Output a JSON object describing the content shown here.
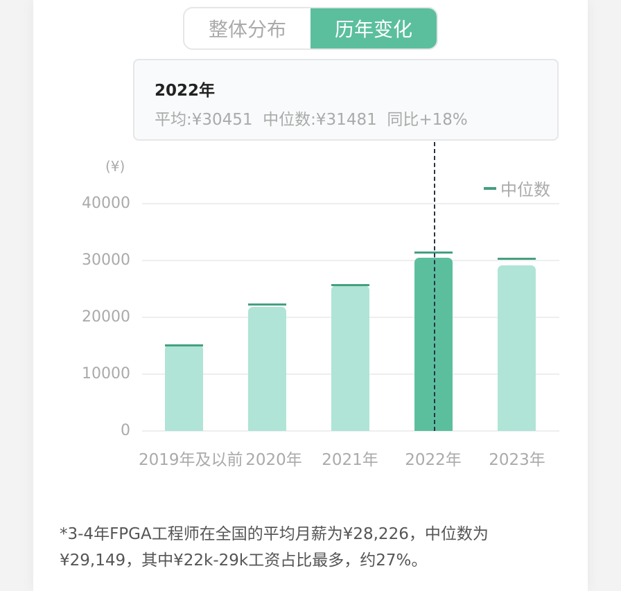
{
  "tabs": [
    {
      "label": "整体分布",
      "active": false
    },
    {
      "label": "历年变化",
      "active": true
    }
  ],
  "tooltip": {
    "title": "2022年",
    "body": "平均:¥30451  中位数:¥31481  同比+18%"
  },
  "chart_data": {
    "type": "bar",
    "title": "",
    "xlabel": "",
    "ylabel": "(¥)",
    "ylim": [
      0,
      40000
    ],
    "yticks": [
      0,
      10000,
      20000,
      30000,
      40000
    ],
    "grid": true,
    "legend_position": "top-right",
    "categories": [
      "2019年及以前",
      "2020年",
      "2021年",
      "2022年",
      "2023年"
    ],
    "series": [
      {
        "name": "平均",
        "type": "bar",
        "values": [
          15200,
          21800,
          25600,
          30451,
          29100
        ]
      },
      {
        "name": "中位数",
        "type": "marker",
        "values": [
          15100,
          22300,
          25700,
          31481,
          30400
        ]
      }
    ],
    "highlighted_index": 3,
    "colors": {
      "bar": "#afe4d6",
      "bar_active": "#5bbf9e",
      "median": "#44a07f"
    }
  },
  "chart": {
    "unit": "(¥)",
    "legend_label": "中位数",
    "yticks": [
      "40000",
      "30000",
      "20000",
      "10000",
      "0"
    ],
    "xticks": [
      "2019年及以前",
      "2020年",
      "2021年",
      "2022年",
      "2023年"
    ]
  },
  "note": "*3-4年FPGA工程师在全国的平均月薪为¥28,226，中位数为¥29,149，其中¥22k-29k工资占比最多，约27%。"
}
